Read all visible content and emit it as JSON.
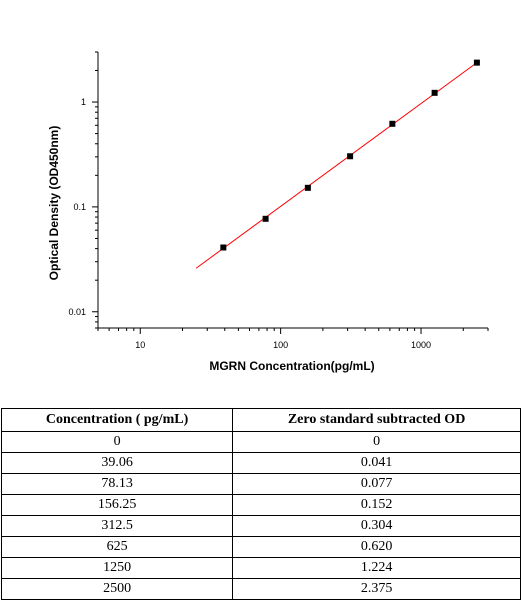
{
  "chart_data": {
    "type": "scatter",
    "title": "",
    "xlabel": "MGRN  Concentration(pg/mL)",
    "ylabel": "Optical Density (OD450nm)",
    "x_scale": "log",
    "y_scale": "log",
    "xlim": [
      5,
      3000
    ],
    "ylim": [
      0.007,
      3
    ],
    "x_tick_labels": [
      "10",
      "100",
      "1000"
    ],
    "y_tick_labels": [
      "0.01",
      "0.1",
      "1"
    ],
    "grid": false,
    "marker_color": "#000000",
    "fit_line_color": "#ff0000",
    "series": [
      {
        "x": [
          39.06,
          78.13,
          156.25,
          312.5,
          625,
          1250,
          2500
        ],
        "y": [
          0.041,
          0.077,
          0.152,
          0.304,
          0.62,
          1.224,
          2.375
        ]
      }
    ],
    "fit_line": {
      "x": [
        25,
        2500
      ],
      "y": [
        0.026,
        2.375
      ]
    }
  },
  "table": {
    "headers": [
      "Concentration ( pg/mL)",
      "Zero standard subtracted OD"
    ],
    "rows": [
      [
        "0",
        "0"
      ],
      [
        "39.06",
        "0.041"
      ],
      [
        "78.13",
        "0.077"
      ],
      [
        "156.25",
        "0.152"
      ],
      [
        "312.5",
        "0.304"
      ],
      [
        "625",
        "0.620"
      ],
      [
        "1250",
        "1.224"
      ],
      [
        "2500",
        "2.375"
      ]
    ]
  }
}
